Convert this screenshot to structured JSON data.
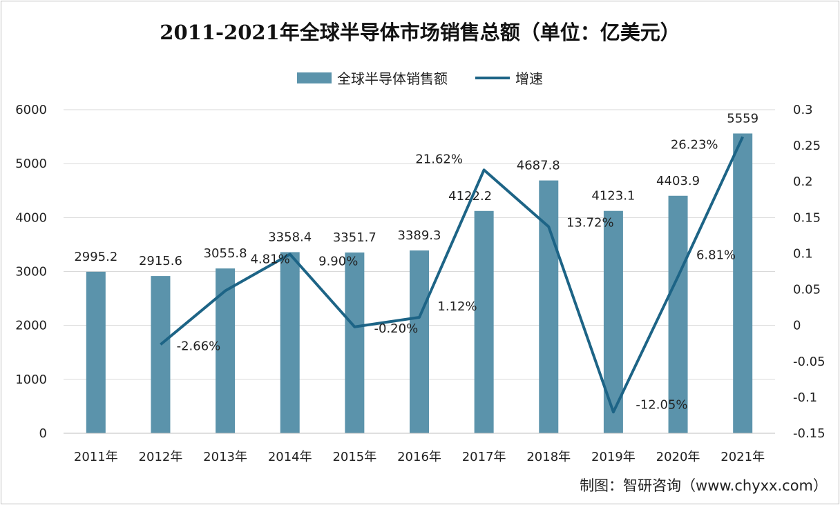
{
  "chart_data": {
    "type": "bar",
    "title": "2011-2021年全球半导体市场销售总额（单位：亿美元）",
    "categories": [
      "2011年",
      "2012年",
      "2013年",
      "2014年",
      "2015年",
      "2016年",
      "2017年",
      "2018年",
      "2019年",
      "2020年",
      "2021年"
    ],
    "series": [
      {
        "name": "全球半导体销售额",
        "type": "bar",
        "axis": "left",
        "color": "#5b93ab",
        "values": [
          2995.2,
          2915.6,
          3055.8,
          3358.4,
          3351.7,
          3389.3,
          4122.2,
          4687.8,
          4123.1,
          4403.9,
          5559
        ],
        "labels": [
          "2995.2",
          "2915.6",
          "3055.8",
          "3358.4",
          "3351.7",
          "3389.3",
          "4122.2",
          "4687.8",
          "4123.1",
          "4403.9",
          "5559"
        ]
      },
      {
        "name": "增速",
        "type": "line",
        "axis": "right",
        "color": "#1d6486",
        "values": [
          null,
          -0.0266,
          0.0481,
          0.099,
          -0.002,
          0.0112,
          0.2162,
          0.1372,
          -0.1205,
          0.0681,
          0.2623
        ],
        "labels": [
          null,
          "-2.66%",
          "4.81%",
          "9.90%",
          "-0.20%",
          "1.12%",
          "21.62%",
          "13.72%",
          "-12.05%",
          "6.81%",
          "26.23%"
        ]
      }
    ],
    "y_left": {
      "ylim": [
        0,
        6000
      ],
      "ticks": [
        "0",
        "1000",
        "2000",
        "3000",
        "4000",
        "5000",
        "6000"
      ]
    },
    "y_right": {
      "ylim": [
        -0.15,
        0.3
      ],
      "ticks": [
        "-0.15",
        "-0.1",
        "-0.05",
        "0",
        "0.05",
        "0.1",
        "0.15",
        "0.2",
        "0.25",
        "0.3"
      ]
    },
    "grid": true,
    "legend": "top"
  },
  "source": "制图：智研咨询（www.chyxx.com）"
}
